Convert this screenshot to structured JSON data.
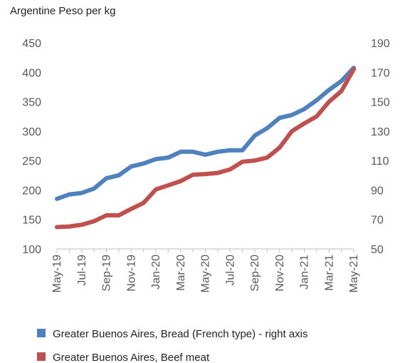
{
  "chart_data": {
    "type": "line",
    "title": "",
    "unit_label": "Argentine Peso per kg",
    "categories": [
      "May-19",
      "Jun-19",
      "Jul-19",
      "Aug-19",
      "Sep-19",
      "Oct-19",
      "Nov-19",
      "Dec-19",
      "Jan-20",
      "Feb-20",
      "Mar-20",
      "Apr-20",
      "May-20",
      "Jun-20",
      "Jul-20",
      "Aug-20",
      "Sep-20",
      "Oct-20",
      "Nov-20",
      "Dec-20",
      "Jan-21",
      "Feb-21",
      "Mar-21",
      "Apr-21",
      "May-21"
    ],
    "tick_labels": [
      "May-19",
      "Jul-19",
      "Sep-19",
      "Nov-19",
      "Jan-20",
      "Mar-20",
      "May-20",
      "Jul-20",
      "Sep-20",
      "Nov-20",
      "Jan-21",
      "Mar-21",
      "May-21"
    ],
    "y_left": {
      "min": 100,
      "max": 450,
      "ticks": [
        100,
        150,
        200,
        250,
        300,
        350,
        400,
        450
      ]
    },
    "y_right": {
      "min": 50,
      "max": 190,
      "ticks": [
        50,
        70,
        90,
        110,
        130,
        150,
        170,
        190
      ]
    },
    "grid": false,
    "legend_position": "bottom",
    "series": [
      {
        "name": "Greater Buenos Aires, Bread (French type) - right axis",
        "axis": "right",
        "color": "#4f81bd",
        "values": [
          84,
          87,
          88,
          91,
          98,
          100,
          106,
          108,
          111,
          112,
          116,
          116,
          114,
          116,
          117,
          117,
          127,
          132,
          139,
          141,
          145,
          151,
          158,
          164,
          173
        ]
      },
      {
        "name": "Greater Buenos Aires, Beef meat",
        "axis": "left",
        "color": "#c0504d",
        "values": [
          137,
          138,
          141,
          147,
          157,
          157,
          168,
          178,
          201,
          208,
          215,
          226,
          227,
          229,
          235,
          248,
          250,
          255,
          272,
          300,
          313,
          325,
          350,
          368,
          405
        ]
      }
    ]
  }
}
